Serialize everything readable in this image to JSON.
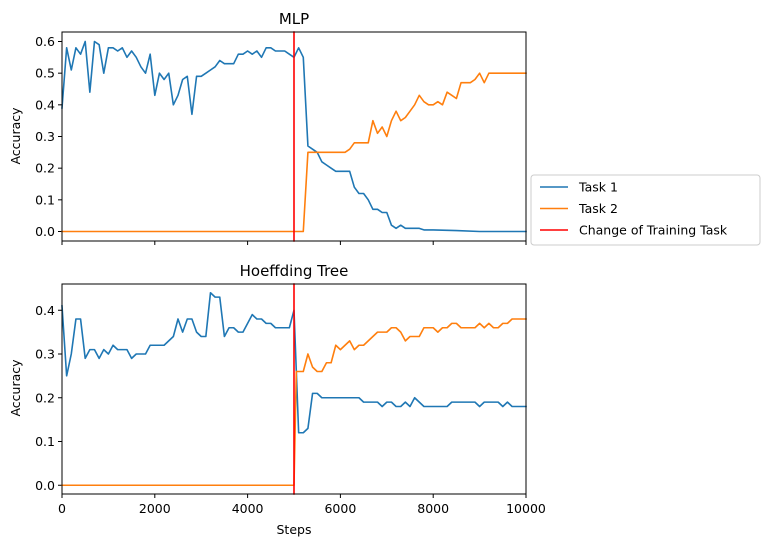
{
  "chart_data": [
    {
      "type": "line",
      "title": "MLP",
      "xlabel": "",
      "ylabel": "Accuracy",
      "xlim": [
        0,
        10000
      ],
      "ylim": [
        -0.03,
        0.63
      ],
      "yticks": [
        0.0,
        0.1,
        0.2,
        0.3,
        0.4,
        0.5,
        0.6
      ],
      "ytick_labels": [
        "0.0",
        "0.1",
        "0.2",
        "0.3",
        "0.4",
        "0.5",
        "0.6"
      ],
      "xticks": [
        0,
        2000,
        4000,
        6000,
        8000,
        10000
      ],
      "xtick_labels": [],
      "vline": 5000,
      "series": [
        {
          "name": "Task 1",
          "color": "#1f77b4",
          "x": [
            0,
            100,
            200,
            300,
            400,
            500,
            600,
            700,
            800,
            900,
            1000,
            1100,
            1200,
            1300,
            1400,
            1500,
            1600,
            1700,
            1800,
            1900,
            2000,
            2100,
            2200,
            2300,
            2400,
            2500,
            2600,
            2700,
            2800,
            2900,
            3000,
            3100,
            3200,
            3300,
            3400,
            3500,
            3600,
            3700,
            3800,
            3900,
            4000,
            4100,
            4200,
            4300,
            4400,
            4500,
            4600,
            4700,
            4800,
            4900,
            5000,
            5100,
            5200,
            5300,
            5400,
            5500,
            5600,
            5700,
            5800,
            5900,
            6000,
            6100,
            6200,
            6300,
            6400,
            6500,
            6600,
            6700,
            6800,
            6900,
            7000,
            7100,
            7200,
            7300,
            7400,
            7500,
            7600,
            7700,
            7800,
            7900,
            8000,
            8500,
            9000,
            9500,
            10000
          ],
          "y": [
            0.39,
            0.58,
            0.51,
            0.58,
            0.56,
            0.6,
            0.44,
            0.6,
            0.59,
            0.5,
            0.58,
            0.58,
            0.57,
            0.58,
            0.55,
            0.57,
            0.55,
            0.52,
            0.5,
            0.56,
            0.43,
            0.5,
            0.48,
            0.5,
            0.4,
            0.43,
            0.48,
            0.49,
            0.37,
            0.49,
            0.49,
            0.5,
            0.51,
            0.52,
            0.54,
            0.53,
            0.53,
            0.53,
            0.56,
            0.56,
            0.57,
            0.56,
            0.57,
            0.55,
            0.58,
            0.58,
            0.57,
            0.57,
            0.57,
            0.56,
            0.55,
            0.58,
            0.55,
            0.27,
            0.26,
            0.25,
            0.22,
            0.21,
            0.2,
            0.19,
            0.19,
            0.19,
            0.19,
            0.14,
            0.12,
            0.12,
            0.1,
            0.07,
            0.07,
            0.06,
            0.06,
            0.02,
            0.01,
            0.02,
            0.01,
            0.01,
            0.01,
            0.01,
            0.005,
            0.005,
            0.005,
            0.003,
            0.0,
            0.0,
            0.0
          ]
        },
        {
          "name": "Task 2",
          "color": "#ff7f0e",
          "x": [
            0,
            5200,
            5300,
            5400,
            5500,
            5600,
            5700,
            5800,
            5900,
            6000,
            6100,
            6200,
            6300,
            6400,
            6500,
            6600,
            6700,
            6800,
            6900,
            7000,
            7100,
            7200,
            7300,
            7400,
            7500,
            7600,
            7700,
            7800,
            7900,
            8000,
            8100,
            8200,
            8300,
            8400,
            8500,
            8600,
            8700,
            8800,
            8900,
            9000,
            9100,
            9200,
            9300,
            9400,
            9500,
            10000
          ],
          "y": [
            0.0,
            0.0,
            0.25,
            0.25,
            0.25,
            0.25,
            0.25,
            0.25,
            0.25,
            0.25,
            0.25,
            0.26,
            0.28,
            0.28,
            0.28,
            0.28,
            0.35,
            0.31,
            0.33,
            0.3,
            0.35,
            0.38,
            0.35,
            0.36,
            0.38,
            0.4,
            0.43,
            0.41,
            0.4,
            0.4,
            0.41,
            0.4,
            0.44,
            0.43,
            0.42,
            0.47,
            0.47,
            0.47,
            0.48,
            0.5,
            0.47,
            0.5,
            0.5,
            0.5,
            0.5,
            0.5
          ]
        },
        {
          "name": "Change of Training Task",
          "color": "#ff0000",
          "x": [
            5000,
            5000
          ],
          "y": [
            -0.03,
            0.63
          ]
        }
      ]
    },
    {
      "type": "line",
      "title": "Hoeffding Tree",
      "xlabel": "Steps",
      "ylabel": "Accuracy",
      "xlim": [
        0,
        10000
      ],
      "ylim": [
        -0.02,
        0.46
      ],
      "yticks": [
        0.0,
        0.1,
        0.2,
        0.3,
        0.4
      ],
      "ytick_labels": [
        "0.0",
        "0.1",
        "0.2",
        "0.3",
        "0.4"
      ],
      "xticks": [
        0,
        2000,
        4000,
        6000,
        8000,
        10000
      ],
      "xtick_labels": [
        "0",
        "2000",
        "4000",
        "6000",
        "8000",
        "10000"
      ],
      "vline": 5000,
      "series": [
        {
          "name": "Task 1",
          "color": "#1f77b4",
          "x": [
            0,
            100,
            200,
            300,
            400,
            500,
            600,
            700,
            800,
            900,
            1000,
            1100,
            1200,
            1300,
            1400,
            1500,
            1600,
            1700,
            1800,
            1900,
            2000,
            2100,
            2200,
            2300,
            2400,
            2500,
            2600,
            2700,
            2800,
            2900,
            3000,
            3100,
            3200,
            3300,
            3400,
            3500,
            3600,
            3700,
            3800,
            3900,
            4000,
            4100,
            4200,
            4300,
            4400,
            4500,
            4600,
            4700,
            4800,
            4900,
            5000,
            5100,
            5200,
            5300,
            5400,
            5500,
            5600,
            5700,
            5800,
            5900,
            6000,
            6100,
            6200,
            6300,
            6400,
            6500,
            6600,
            6700,
            6800,
            6900,
            7000,
            7100,
            7200,
            7300,
            7400,
            7500,
            7600,
            7700,
            7800,
            7900,
            8000,
            8100,
            8200,
            8300,
            8400,
            8500,
            8600,
            8700,
            8800,
            8900,
            9000,
            9100,
            9200,
            9300,
            9400,
            9500,
            9600,
            9700,
            9800,
            9900,
            10000
          ],
          "y": [
            0.41,
            0.25,
            0.3,
            0.38,
            0.38,
            0.29,
            0.31,
            0.31,
            0.29,
            0.31,
            0.3,
            0.32,
            0.31,
            0.31,
            0.31,
            0.29,
            0.3,
            0.3,
            0.3,
            0.32,
            0.32,
            0.32,
            0.32,
            0.33,
            0.34,
            0.38,
            0.35,
            0.38,
            0.38,
            0.35,
            0.34,
            0.34,
            0.44,
            0.43,
            0.43,
            0.34,
            0.36,
            0.36,
            0.35,
            0.35,
            0.37,
            0.39,
            0.38,
            0.38,
            0.37,
            0.37,
            0.36,
            0.36,
            0.36,
            0.36,
            0.4,
            0.12,
            0.12,
            0.13,
            0.21,
            0.21,
            0.2,
            0.2,
            0.2,
            0.2,
            0.2,
            0.2,
            0.2,
            0.2,
            0.2,
            0.19,
            0.19,
            0.19,
            0.19,
            0.18,
            0.19,
            0.19,
            0.18,
            0.18,
            0.19,
            0.18,
            0.2,
            0.19,
            0.18,
            0.18,
            0.18,
            0.18,
            0.18,
            0.18,
            0.19,
            0.19,
            0.19,
            0.19,
            0.19,
            0.19,
            0.18,
            0.19,
            0.19,
            0.19,
            0.19,
            0.18,
            0.19,
            0.18,
            0.18,
            0.18,
            0.18
          ]
        },
        {
          "name": "Task 2",
          "color": "#ff7f0e",
          "x": [
            0,
            5000,
            5050,
            5100,
            5200,
            5300,
            5400,
            5500,
            5600,
            5700,
            5800,
            5900,
            6000,
            6100,
            6200,
            6300,
            6400,
            6500,
            6600,
            6700,
            6800,
            6900,
            7000,
            7100,
            7200,
            7300,
            7400,
            7500,
            7600,
            7700,
            7800,
            7900,
            8000,
            8100,
            8200,
            8300,
            8400,
            8500,
            8600,
            8700,
            8800,
            8900,
            9000,
            9100,
            9200,
            9300,
            9400,
            9500,
            9600,
            9700,
            9800,
            9900,
            10000
          ],
          "y": [
            0.0,
            0.0,
            0.26,
            0.26,
            0.26,
            0.3,
            0.27,
            0.26,
            0.26,
            0.28,
            0.28,
            0.32,
            0.31,
            0.32,
            0.33,
            0.31,
            0.32,
            0.32,
            0.33,
            0.34,
            0.35,
            0.35,
            0.35,
            0.36,
            0.36,
            0.35,
            0.33,
            0.34,
            0.34,
            0.34,
            0.36,
            0.36,
            0.36,
            0.35,
            0.36,
            0.36,
            0.37,
            0.37,
            0.36,
            0.36,
            0.36,
            0.36,
            0.37,
            0.36,
            0.37,
            0.36,
            0.36,
            0.37,
            0.37,
            0.38,
            0.38,
            0.38,
            0.38
          ]
        },
        {
          "name": "Change of Training Task",
          "color": "#ff0000",
          "x": [
            5000,
            5000
          ],
          "y": [
            -0.02,
            0.46
          ]
        }
      ]
    }
  ],
  "legend": {
    "placement": "center-right",
    "entries": [
      {
        "label": "Task 1",
        "color": "#1f77b4"
      },
      {
        "label": "Task 2",
        "color": "#ff7f0e"
      },
      {
        "label": "Change of Training Task",
        "color": "#ff0000"
      }
    ]
  }
}
